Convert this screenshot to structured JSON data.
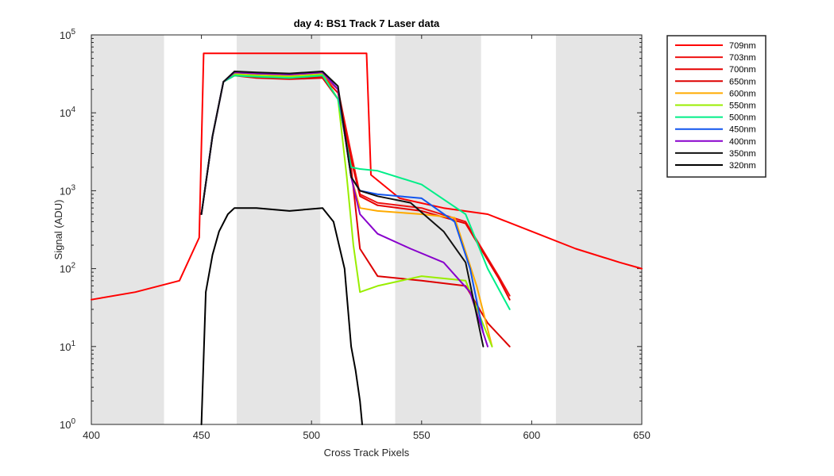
{
  "chart_data": {
    "type": "line",
    "title": "day 4: BS1  Track 7 Laser data",
    "xlabel": "Cross Track Pixels",
    "ylabel": "Signal (ADU)",
    "xlim": [
      400,
      650
    ],
    "ylim": [
      1,
      100000
    ],
    "yscale": "log",
    "x_ticks": [
      "400",
      "450",
      "500",
      "550",
      "600",
      "650"
    ],
    "y_ticks": [
      {
        "base": "10",
        "exp": "0"
      },
      {
        "base": "10",
        "exp": "1"
      },
      {
        "base": "10",
        "exp": "2"
      },
      {
        "base": "10",
        "exp": "3"
      },
      {
        "base": "10",
        "exp": "4"
      },
      {
        "base": "10",
        "exp": "5"
      }
    ],
    "grid": false,
    "legend_position": "outside-top-right",
    "shaded_bands": [
      [
        400,
        433
      ],
      [
        466,
        504
      ],
      [
        538,
        577
      ],
      [
        611,
        650
      ]
    ],
    "series": [
      {
        "name": "709nm",
        "color": "#ff0000",
        "x": [
          400,
          420,
          440,
          449,
          451,
          453,
          525,
          527,
          540,
          560,
          580,
          600,
          620,
          640,
          650
        ],
        "y": [
          40,
          50,
          70,
          250,
          58000,
          58000,
          58000,
          1600,
          800,
          600,
          500,
          300,
          180,
          120,
          100
        ]
      },
      {
        "name": "703nm",
        "color": "#ee1111",
        "x": [
          450,
          455,
          460,
          465,
          475,
          490,
          505,
          512,
          518,
          522,
          530,
          550,
          570,
          585,
          590
        ],
        "y": [
          500,
          5000,
          25000,
          32000,
          30000,
          29000,
          30000,
          20000,
          3000,
          900,
          700,
          600,
          400,
          80,
          45
        ]
      },
      {
        "name": "700nm",
        "color": "#e60000",
        "x": [
          450,
          455,
          460,
          465,
          475,
          490,
          505,
          512,
          518,
          522,
          530,
          550,
          570,
          585,
          590
        ],
        "y": [
          500,
          5000,
          25000,
          31000,
          29000,
          28000,
          29000,
          18000,
          2500,
          850,
          650,
          550,
          380,
          75,
          40
        ]
      },
      {
        "name": "650nm",
        "color": "#dd0000",
        "x": [
          450,
          455,
          460,
          465,
          475,
          490,
          505,
          512,
          518,
          522,
          530,
          550,
          570,
          580,
          590
        ],
        "y": [
          500,
          5000,
          25000,
          30000,
          28000,
          27000,
          28000,
          15000,
          2000,
          180,
          80,
          70,
          60,
          20,
          10
        ]
      },
      {
        "name": "600nm",
        "color": "#ffaa00",
        "x": [
          450,
          455,
          460,
          465,
          475,
          490,
          505,
          512,
          518,
          522,
          530,
          550,
          565,
          575,
          582
        ],
        "y": [
          500,
          5000,
          25000,
          32000,
          31000,
          30000,
          32000,
          20000,
          1500,
          600,
          550,
          500,
          450,
          60,
          10
        ]
      },
      {
        "name": "550nm",
        "color": "#99ee00",
        "x": [
          450,
          455,
          460,
          465,
          475,
          490,
          505,
          512,
          516,
          519,
          522,
          530,
          550,
          570,
          582
        ],
        "y": [
          500,
          5000,
          25000,
          31000,
          30000,
          29000,
          31000,
          15000,
          1500,
          200,
          50,
          60,
          80,
          70,
          10
        ]
      },
      {
        "name": "500nm",
        "color": "#00ee88",
        "x": [
          450,
          455,
          460,
          465,
          475,
          490,
          505,
          512,
          518,
          522,
          530,
          550,
          570,
          580,
          590
        ],
        "y": [
          500,
          5000,
          25000,
          30000,
          29000,
          28000,
          30000,
          15000,
          2000,
          1900,
          1800,
          1200,
          500,
          100,
          30
        ]
      },
      {
        "name": "450nm",
        "color": "#1155ee",
        "x": [
          450,
          455,
          460,
          465,
          475,
          490,
          505,
          512,
          518,
          522,
          530,
          550,
          565,
          572,
          578
        ],
        "y": [
          500,
          5000,
          25000,
          33000,
          32000,
          31000,
          33000,
          20000,
          1500,
          1000,
          900,
          800,
          400,
          100,
          15
        ]
      },
      {
        "name": "400nm",
        "color": "#8800cc",
        "x": [
          450,
          455,
          460,
          465,
          475,
          490,
          505,
          512,
          518,
          522,
          530,
          545,
          560,
          572,
          580
        ],
        "y": [
          500,
          5000,
          25000,
          33000,
          32000,
          31000,
          33000,
          20000,
          1500,
          500,
          280,
          180,
          120,
          50,
          10
        ]
      },
      {
        "name": "350nm",
        "color": "#111111",
        "x": [
          450,
          455,
          460,
          465,
          475,
          490,
          505,
          512,
          518,
          522,
          530,
          545,
          560,
          570,
          578
        ],
        "y": [
          500,
          5000,
          25000,
          34000,
          33000,
          32000,
          34000,
          22000,
          1500,
          1000,
          850,
          700,
          300,
          120,
          10
        ]
      },
      {
        "name": "320nm",
        "color": "#000000",
        "x": [
          450,
          452,
          455,
          458,
          462,
          465,
          475,
          490,
          505,
          510,
          515,
          518,
          520,
          522,
          523
        ],
        "y": [
          1,
          50,
          150,
          300,
          500,
          600,
          600,
          550,
          600,
          400,
          100,
          10,
          5,
          2,
          1
        ]
      }
    ]
  }
}
